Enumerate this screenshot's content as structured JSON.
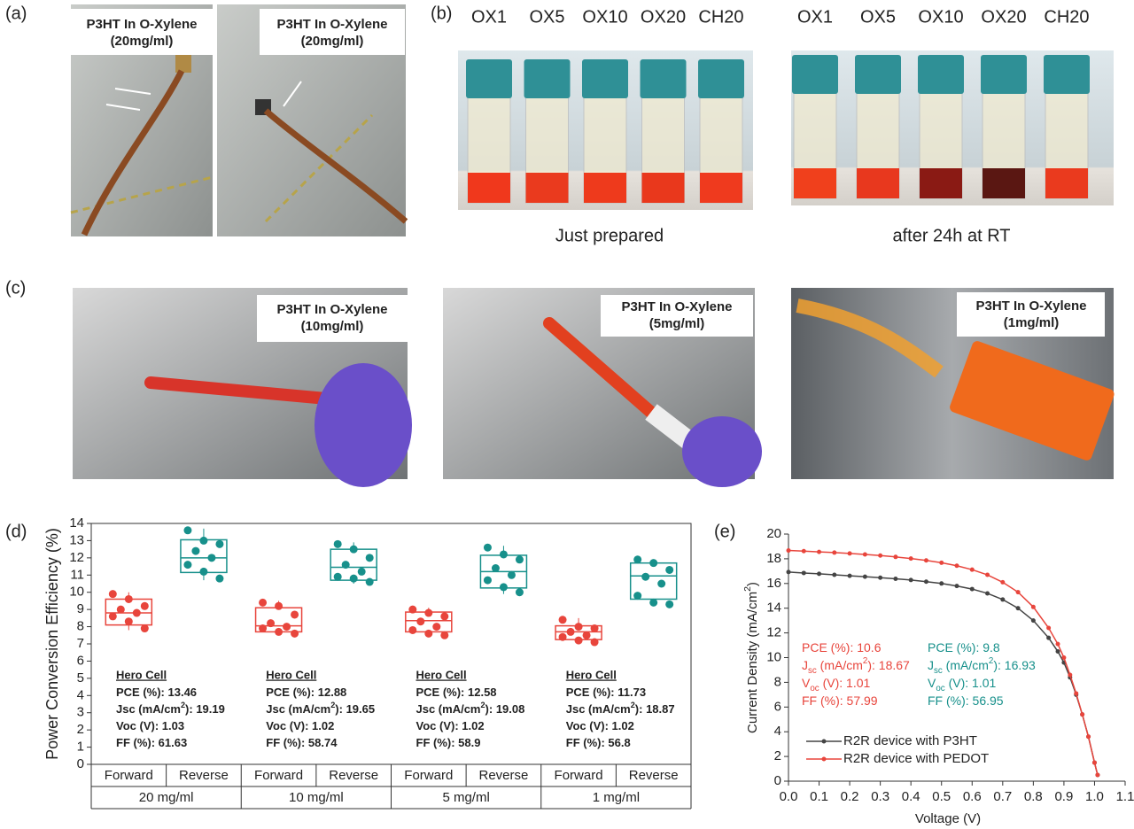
{
  "panels": {
    "a": {
      "label": "(a)",
      "captions": [
        [
          "P3HT In O-Xylene",
          "(20mg/ml)"
        ],
        [
          "P3HT In O-Xylene",
          "(20mg/ml)"
        ]
      ]
    },
    "b": {
      "label": "(b)",
      "left": {
        "vials": [
          "OX1",
          "OX5",
          "OX10",
          "OX20",
          "CH20"
        ],
        "caption": "Just prepared"
      },
      "right": {
        "vials": [
          "OX1",
          "OX5",
          "OX10",
          "OX20",
          "CH20"
        ],
        "caption": "after 24h at RT"
      }
    },
    "c": {
      "label": "(c)",
      "captions": [
        [
          "P3HT In O-Xylene",
          "(10mg/ml)"
        ],
        [
          "P3HT In O-Xylene",
          "(5mg/ml)"
        ],
        [
          "P3HT In O-Xylene",
          "(1mg/ml)"
        ]
      ]
    }
  },
  "chart_data": [
    {
      "type": "box",
      "panel_label": "(d)",
      "ylabel": "Power Conversion Efficiency (%)",
      "ylim": [
        0,
        14
      ],
      "yticks": [
        0,
        1,
        2,
        3,
        4,
        5,
        6,
        7,
        8,
        9,
        10,
        11,
        12,
        13,
        14
      ],
      "categories": [
        "Forward",
        "Reverse",
        "Forward",
        "Reverse",
        "Forward",
        "Reverse",
        "Forward",
        "Reverse"
      ],
      "groups": [
        "20 mg/ml",
        "10 mg/ml",
        "5 mg/ml",
        "1 mg/ml"
      ],
      "boxes": [
        {
          "color": "#e8453c",
          "q1": 8.1,
          "median": 8.8,
          "q3": 9.6,
          "whisker_low": 7.8,
          "whisker_high": 10.0,
          "points": [
            9.9,
            9.6,
            9.2,
            9.0,
            8.8,
            8.6,
            8.3,
            7.9
          ]
        },
        {
          "color": "#17908b",
          "q1": 11.15,
          "median": 12.0,
          "q3": 13.05,
          "whisker_low": 10.7,
          "whisker_high": 13.7,
          "points": [
            13.6,
            13.0,
            12.8,
            12.4,
            12.0,
            11.6,
            11.2,
            10.8
          ]
        },
        {
          "color": "#e8453c",
          "q1": 7.7,
          "median": 8.05,
          "q3": 9.1,
          "whisker_low": 7.6,
          "whisker_high": 9.5,
          "points": [
            9.4,
            9.2,
            8.7,
            8.2,
            8.0,
            7.9,
            7.7,
            7.6
          ]
        },
        {
          "color": "#17908b",
          "q1": 10.7,
          "median": 11.45,
          "q3": 12.5,
          "whisker_low": 10.5,
          "whisker_high": 12.9,
          "points": [
            12.8,
            12.5,
            12.0,
            11.6,
            11.2,
            10.9,
            10.8,
            10.6
          ]
        },
        {
          "color": "#e8453c",
          "q1": 7.7,
          "median": 8.35,
          "q3": 8.85,
          "whisker_low": 7.5,
          "whisker_high": 9.1,
          "points": [
            9.0,
            8.8,
            8.6,
            8.3,
            8.0,
            7.8,
            7.6,
            7.5
          ]
        },
        {
          "color": "#17908b",
          "q1": 10.25,
          "median": 11.2,
          "q3": 12.15,
          "whisker_low": 9.9,
          "whisker_high": 12.7,
          "points": [
            12.6,
            12.2,
            11.9,
            11.4,
            11.0,
            10.7,
            10.3,
            10.0
          ]
        },
        {
          "color": "#e8453c",
          "q1": 7.25,
          "median": 7.7,
          "q3": 8.05,
          "whisker_low": 7.1,
          "whisker_high": 8.5,
          "points": [
            8.4,
            8.0,
            7.9,
            7.7,
            7.5,
            7.4,
            7.2,
            7.1
          ]
        },
        {
          "color": "#17908b",
          "q1": 9.6,
          "median": 10.95,
          "q3": 11.7,
          "whisker_low": 9.2,
          "whisker_high": 11.9,
          "points": [
            11.9,
            11.7,
            11.3,
            10.9,
            10.5,
            9.8,
            9.4,
            9.3
          ]
        }
      ],
      "annotations": [
        {
          "title": "Hero Cell",
          "lines": [
            [
              {
                "t": "PCE (%): 13.46"
              }
            ],
            [
              {
                "t": "Jsc (mA/cm"
              },
              {
                "sup": "2"
              },
              {
                "t": "): 19.19"
              }
            ],
            [
              {
                "t": "Voc (V): 1.03"
              }
            ],
            [
              {
                "t": "FF (%): 61.63"
              }
            ]
          ]
        },
        {
          "title": "Hero Cell",
          "lines": [
            [
              {
                "t": "PCE (%): 12.88"
              }
            ],
            [
              {
                "t": "Jsc (mA/cm"
              },
              {
                "sup": "2"
              },
              {
                "t": "): 19.65"
              }
            ],
            [
              {
                "t": "Voc (V): 1.02"
              }
            ],
            [
              {
                "t": "FF (%): 58.74"
              }
            ]
          ]
        },
        {
          "title": "Hero Cell",
          "lines": [
            [
              {
                "t": "PCE (%): 12.58"
              }
            ],
            [
              {
                "t": "Jsc (mA/cm"
              },
              {
                "sup": "2"
              },
              {
                "t": "): 19.08"
              }
            ],
            [
              {
                "t": "Voc (V): 1.02"
              }
            ],
            [
              {
                "t": "FF (%): 58.9"
              }
            ]
          ]
        },
        {
          "title": "Hero Cell",
          "lines": [
            [
              {
                "t": "PCE (%): 11.73"
              }
            ],
            [
              {
                "t": "Jsc (mA/cm"
              },
              {
                "sup": "2"
              },
              {
                "t": "): 18.87"
              }
            ],
            [
              {
                "t": "Voc (V): 1.02"
              }
            ],
            [
              {
                "t": "FF (%): 56.8"
              }
            ]
          ]
        }
      ]
    },
    {
      "type": "line",
      "panel_label": "(e)",
      "xlabel": "Voltage (V)",
      "ylabel": [
        {
          "t": "Current Density (mA/cm"
        },
        {
          "sup": "2"
        },
        {
          "t": ")"
        }
      ],
      "xlim": [
        0,
        1.1
      ],
      "xticks": [
        {
          "value": 0,
          "label": "0.0"
        },
        0.1,
        0.2,
        0.3,
        0.4,
        0.5,
        0.6,
        0.7,
        0.8,
        0.9,
        {
          "value": 1,
          "label": "1.0"
        },
        1.1
      ],
      "ylim": [
        0,
        20
      ],
      "yticks": [
        0,
        2,
        4,
        6,
        8,
        10,
        12,
        14,
        16,
        18,
        20
      ],
      "x": [
        0,
        0.05,
        0.1,
        0.15,
        0.2,
        0.25,
        0.3,
        0.35,
        0.4,
        0.45,
        0.5,
        0.55,
        0.6,
        0.65,
        0.7,
        0.75,
        0.8,
        0.85,
        0.88,
        0.9,
        0.92,
        0.94,
        0.96,
        0.98,
        1.0,
        1.01
      ],
      "series": [
        {
          "name": "R2R device with P3HT",
          "color": "#444444",
          "values": [
            16.93,
            16.85,
            16.78,
            16.7,
            16.62,
            16.55,
            16.47,
            16.38,
            16.28,
            16.15,
            16.0,
            15.8,
            15.55,
            15.2,
            14.7,
            14.0,
            13.0,
            11.6,
            10.5,
            9.6,
            8.4,
            7.0,
            5.4,
            3.6,
            1.5,
            0.5
          ]
        },
        {
          "name": "R2R device with PEDOT",
          "color": "#e8453c",
          "values": [
            18.67,
            18.62,
            18.56,
            18.5,
            18.43,
            18.35,
            18.26,
            18.15,
            18.02,
            17.87,
            17.68,
            17.44,
            17.12,
            16.7,
            16.1,
            15.3,
            14.1,
            12.4,
            11.1,
            10.0,
            8.6,
            7.1,
            5.4,
            3.6,
            1.5,
            0.5
          ]
        }
      ],
      "legend": "lower left",
      "annotations": [
        {
          "color": "#e8453c",
          "lines": [
            [
              {
                "t": "PCE (%): 10.6"
              }
            ],
            [
              {
                "t": "J"
              },
              {
                "sub": "sc"
              },
              {
                "t": " (mA/cm"
              },
              {
                "sup": "2"
              },
              {
                "t": "): 18.67"
              }
            ],
            [
              {
                "t": "V"
              },
              {
                "sub": "oc"
              },
              {
                "t": " (V): 1.01"
              }
            ],
            [
              {
                "t": "FF (%): 57.99"
              }
            ]
          ]
        },
        {
          "color": "#17908b",
          "lines": [
            [
              {
                "t": "PCE (%): 9.8"
              }
            ],
            [
              {
                "t": "J"
              },
              {
                "sub": "sc"
              },
              {
                "t": " (mA/cm"
              },
              {
                "sup": "2"
              },
              {
                "t": "): 16.93"
              }
            ],
            [
              {
                "t": "V"
              },
              {
                "sub": "oc"
              },
              {
                "t": " (V): 1.01"
              }
            ],
            [
              {
                "t": "FF (%): 56.95"
              }
            ]
          ]
        }
      ]
    }
  ]
}
